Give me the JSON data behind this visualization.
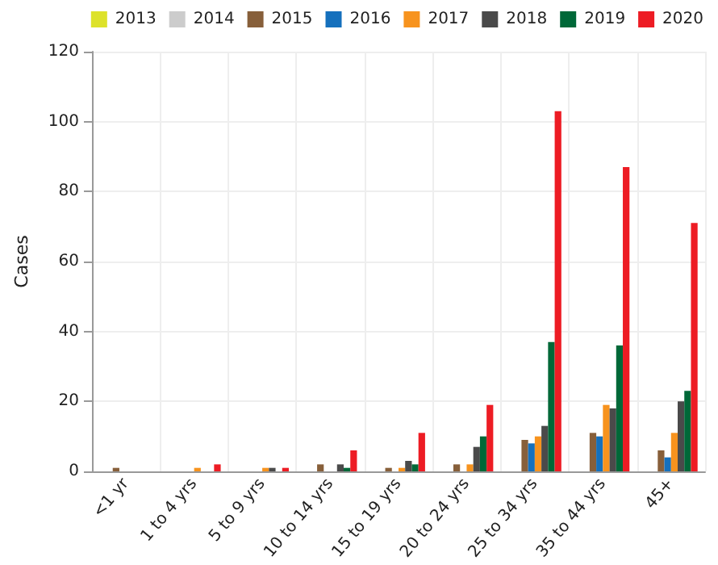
{
  "chart_data": {
    "type": "bar",
    "ylabel": "Cases",
    "categories": [
      "<1 yr",
      "1 to 4 yrs",
      "5 to 9 yrs",
      "10 to 14 yrs",
      "15 to 19 yrs",
      "20 to 24 yrs",
      "25 to 34 yrs",
      "35 to 44 yrs",
      "45+"
    ],
    "series": [
      {
        "name": "2013",
        "color": "#dde22a",
        "values": [
          0,
          0,
          0,
          0,
          0,
          0,
          0,
          0,
          0
        ]
      },
      {
        "name": "2014",
        "color": "#cccccc",
        "values": [
          0,
          0,
          0,
          0,
          0,
          0,
          0,
          0,
          0
        ]
      },
      {
        "name": "2015",
        "color": "#875f3a",
        "values": [
          1,
          0,
          0,
          2,
          1,
          2,
          9,
          11,
          6
        ]
      },
      {
        "name": "2016",
        "color": "#1570bd",
        "values": [
          0,
          0,
          0,
          0,
          0,
          0,
          8,
          10,
          4
        ]
      },
      {
        "name": "2017",
        "color": "#f7931e",
        "values": [
          0,
          1,
          1,
          0,
          1,
          2,
          10,
          19,
          11
        ]
      },
      {
        "name": "2018",
        "color": "#4a4a4a",
        "values": [
          0,
          0,
          1,
          2,
          3,
          7,
          13,
          18,
          20
        ]
      },
      {
        "name": "2019",
        "color": "#006838",
        "values": [
          0,
          0,
          0,
          1,
          2,
          10,
          37,
          36,
          23
        ]
      },
      {
        "name": "2020",
        "color": "#ed1c24",
        "values": [
          0,
          2,
          1,
          6,
          11,
          19,
          103,
          87,
          71
        ]
      }
    ],
    "ylim": [
      0,
      120
    ],
    "yticks": [
      0,
      20,
      40,
      60,
      80,
      100,
      120
    ],
    "grid": true,
    "legend": "top"
  }
}
